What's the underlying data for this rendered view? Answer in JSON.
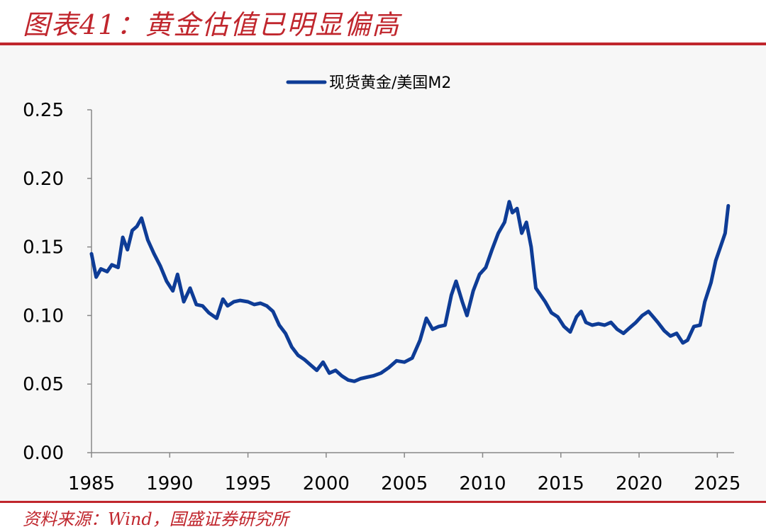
{
  "header": {
    "title": "图表41：黄金估值已明显偏高"
  },
  "footer": {
    "source": "资料来源：Wind，国盛证券研究所"
  },
  "colors": {
    "accent": "#c0262d",
    "series": "#0e3c96"
  },
  "chart_data": {
    "type": "line",
    "legend": {
      "position": "top-center",
      "entries": [
        "现货黄金/美国M2"
      ]
    },
    "xlim": [
      1985,
      2025.8
    ],
    "ylim": [
      0,
      0.25
    ],
    "x_ticks": [
      "1985",
      "1990",
      "1995",
      "2000",
      "2005",
      "2010",
      "2015",
      "2020",
      "2025"
    ],
    "y_ticks": [
      "0.00",
      "0.05",
      "0.10",
      "0.15",
      "0.20",
      "0.25"
    ],
    "grid": false,
    "series": [
      {
        "name": "现货黄金/美国M2",
        "x": [
          1985.0,
          1985.3,
          1985.6,
          1986.0,
          1986.3,
          1986.7,
          1987.0,
          1987.3,
          1987.6,
          1987.9,
          1988.2,
          1988.6,
          1989.0,
          1989.4,
          1989.8,
          1990.2,
          1990.5,
          1990.9,
          1991.3,
          1991.7,
          1992.1,
          1992.5,
          1993.0,
          1993.4,
          1993.7,
          1994.1,
          1994.5,
          1995.0,
          1995.4,
          1995.8,
          1996.2,
          1996.6,
          1997.0,
          1997.4,
          1997.8,
          1998.2,
          1998.6,
          1999.0,
          1999.4,
          1999.8,
          2000.2,
          2000.6,
          2001.0,
          2001.4,
          2001.8,
          2002.2,
          2002.6,
          2003.0,
          2003.5,
          2004.0,
          2004.5,
          2005.0,
          2005.5,
          2006.0,
          2006.4,
          2006.8,
          2007.2,
          2007.6,
          2008.0,
          2008.3,
          2008.7,
          2009.0,
          2009.4,
          2009.8,
          2010.2,
          2010.6,
          2011.0,
          2011.4,
          2011.7,
          2011.9,
          2012.2,
          2012.5,
          2012.8,
          2013.1,
          2013.4,
          2013.7,
          2014.0,
          2014.4,
          2014.8,
          2015.2,
          2015.6,
          2016.0,
          2016.3,
          2016.6,
          2017.0,
          2017.4,
          2017.8,
          2018.2,
          2018.6,
          2019.0,
          2019.4,
          2019.8,
          2020.2,
          2020.6,
          2020.9,
          2021.2,
          2021.6,
          2022.0,
          2022.4,
          2022.8,
          2023.1,
          2023.5,
          2023.9,
          2024.2,
          2024.6,
          2024.9,
          2025.2,
          2025.5,
          2025.7
        ],
        "values": [
          0.145,
          0.128,
          0.134,
          0.132,
          0.137,
          0.135,
          0.157,
          0.148,
          0.162,
          0.165,
          0.171,
          0.155,
          0.145,
          0.136,
          0.125,
          0.118,
          0.13,
          0.11,
          0.12,
          0.108,
          0.107,
          0.102,
          0.098,
          0.112,
          0.107,
          0.11,
          0.111,
          0.11,
          0.108,
          0.109,
          0.107,
          0.103,
          0.093,
          0.087,
          0.077,
          0.071,
          0.068,
          0.064,
          0.06,
          0.066,
          0.058,
          0.06,
          0.056,
          0.053,
          0.052,
          0.054,
          0.055,
          0.056,
          0.058,
          0.062,
          0.067,
          0.066,
          0.069,
          0.082,
          0.098,
          0.09,
          0.092,
          0.093,
          0.115,
          0.125,
          0.11,
          0.1,
          0.118,
          0.13,
          0.135,
          0.148,
          0.16,
          0.168,
          0.183,
          0.175,
          0.178,
          0.16,
          0.168,
          0.15,
          0.12,
          0.115,
          0.11,
          0.102,
          0.099,
          0.092,
          0.088,
          0.099,
          0.103,
          0.095,
          0.093,
          0.094,
          0.093,
          0.095,
          0.09,
          0.087,
          0.091,
          0.095,
          0.1,
          0.103,
          0.099,
          0.095,
          0.089,
          0.085,
          0.087,
          0.08,
          0.082,
          0.092,
          0.093,
          0.11,
          0.124,
          0.14,
          0.15,
          0.16,
          0.18
        ]
      }
    ]
  }
}
